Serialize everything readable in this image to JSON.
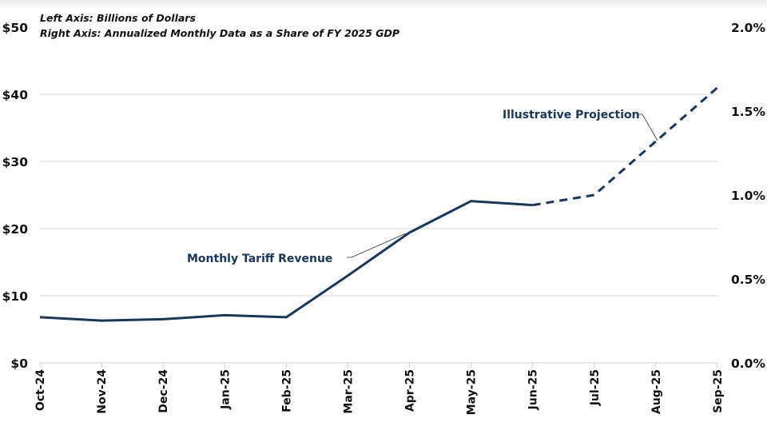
{
  "chart_data": {
    "type": "line",
    "title": "",
    "notes": [
      "Left Axis: Billions of Dollars",
      "Right Axis: Annualized Monthly Data as a Share of FY 2025 GDP"
    ],
    "categories": [
      "Oct-24",
      "Nov-24",
      "Dec-24",
      "Jan-25",
      "Feb-25",
      "Mar-25",
      "Apr-25",
      "May-25",
      "Jun-25",
      "Jul-25",
      "Aug-25",
      "Sep-25"
    ],
    "series": [
      {
        "name": "Monthly Tariff Revenue",
        "style": "solid",
        "color": "#17375e",
        "values": [
          6.8,
          6.3,
          6.5,
          7.1,
          6.8,
          13.0,
          19.4,
          24.1,
          23.5,
          null,
          null,
          null
        ]
      },
      {
        "name": "Illustrative Projection",
        "style": "dashed",
        "color": "#17375e",
        "values": [
          null,
          null,
          null,
          null,
          null,
          null,
          null,
          null,
          23.5,
          25.0,
          33.0,
          41.0
        ]
      }
    ],
    "left_axis": {
      "label": "Billions of Dollars",
      "ylim": [
        0,
        50
      ],
      "ticks": [
        "$0",
        "$10",
        "$20",
        "$30",
        "$40",
        "$50"
      ]
    },
    "right_axis": {
      "label": "Annualized Monthly Data as a Share of FY 2025 GDP",
      "ylim": [
        0.0,
        2.0
      ],
      "ticks": [
        "0.0%",
        "0.5%",
        "1.0%",
        "1.5%",
        "2.0%"
      ]
    },
    "annotations": [
      {
        "text": "Monthly Tariff Revenue",
        "points_to": "Apr-25"
      },
      {
        "text": "Illustrative Projection",
        "points_to": "Aug-25"
      }
    ],
    "grid": true,
    "legend": "none"
  }
}
